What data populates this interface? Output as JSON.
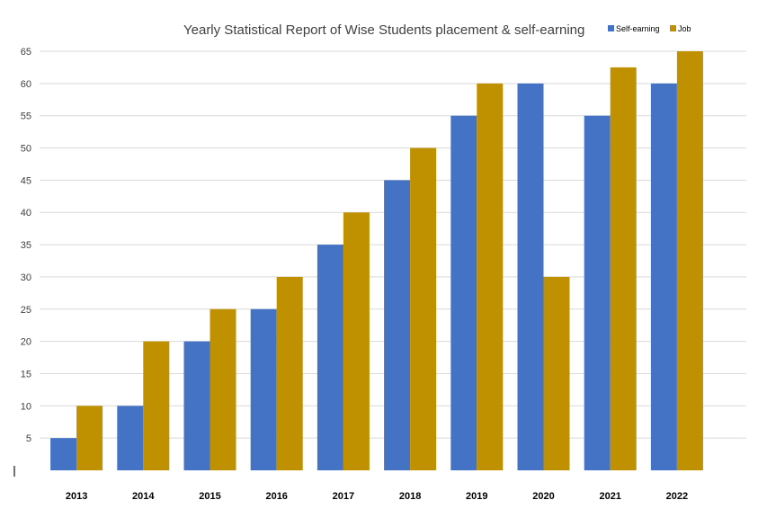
{
  "chart_data": {
    "type": "bar",
    "title": "Yearly Statistical Report of Wise Students placement & self-earning",
    "xlabel": "",
    "ylabel": "",
    "ylim": [
      0,
      65
    ],
    "yticks": [
      5,
      10,
      15,
      20,
      25,
      30,
      35,
      40,
      45,
      50,
      55,
      60,
      65
    ],
    "grid": true,
    "legend_position": "top-right",
    "categories": [
      "2013",
      "2014",
      "2015",
      "2016",
      "2017",
      "2018",
      "2019",
      "2020",
      "2021",
      "2022"
    ],
    "series": [
      {
        "name": "Self-earning",
        "color": "#4472c4",
        "values": [
          5,
          10,
          20,
          25,
          35,
          45,
          55,
          60,
          55,
          60
        ]
      },
      {
        "name": "Job",
        "color": "#bf9000",
        "values": [
          10,
          20,
          25,
          30,
          40,
          50,
          60,
          30,
          62.5,
          65
        ]
      }
    ]
  }
}
